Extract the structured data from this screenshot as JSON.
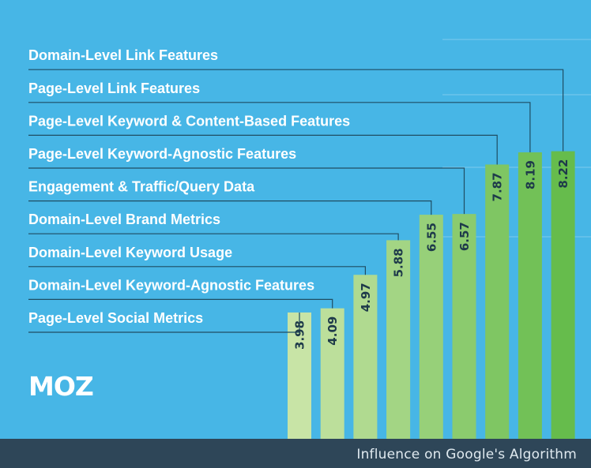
{
  "brand": {
    "logo_text": "MOZ"
  },
  "footer": {
    "caption": "Influence on Google's Algorithm"
  },
  "colors": {
    "background": "#47b6e6",
    "footer": "#2e4658",
    "label_text": "#ffffff",
    "leader_line": "#1f4d63",
    "value_text": "#1e3a4a",
    "bar_light": "#c8e4a6",
    "bar_dark": "#66bc4c"
  },
  "chart_data": {
    "type": "bar",
    "orientation": "vertical",
    "categories": [
      "Page-Level Social Metrics",
      "Domain-Level Keyword-Agnostic Features",
      "Domain-Level Keyword Usage",
      "Domain-Level Brand Metrics",
      "Engagement & Traffic/Query Data",
      "Page-Level Keyword-Agnostic Features",
      "Page-Level Keyword & Content-Based Features",
      "Page-Level Link Features",
      "Domain-Level Link Features"
    ],
    "values": [
      3.98,
      4.09,
      4.97,
      5.88,
      6.55,
      6.57,
      7.87,
      8.19,
      8.22
    ],
    "value_labels": [
      "3.98",
      "4.09",
      "4.97",
      "5.88",
      "6.55",
      "6.57",
      "7.87",
      "8.19",
      "8.22"
    ],
    "xlabel": "Influence on Google's Algorithm",
    "ylabel": "",
    "grid": true,
    "data_labels": "rotated, inside bar top"
  }
}
